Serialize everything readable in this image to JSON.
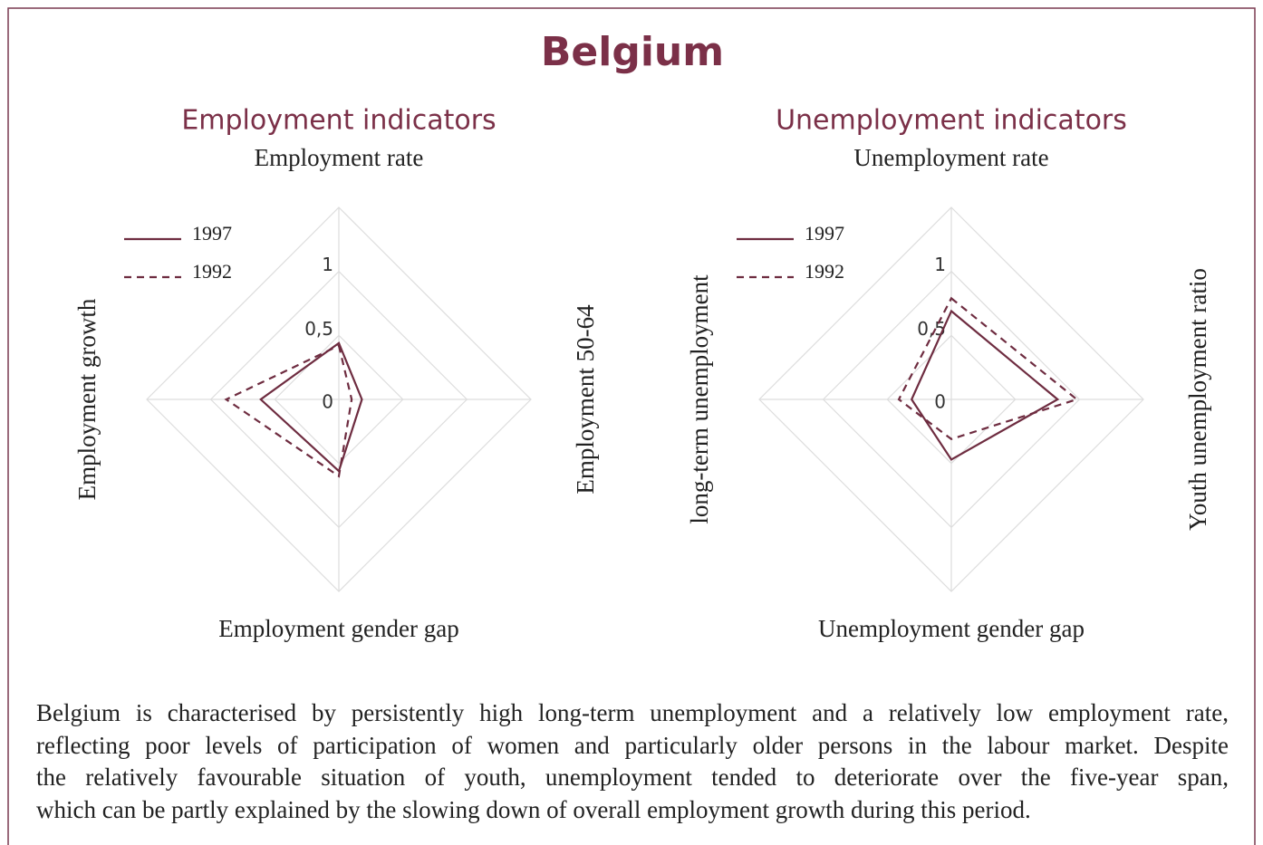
{
  "title": "Belgium",
  "chart_data": [
    {
      "type": "radar",
      "title": "Employment indicators",
      "categories": [
        "Employment rate",
        "Employment 50-64",
        "Employment gender gap",
        "Employment growth"
      ],
      "series": [
        {
          "name": "1997",
          "color": "#6e2c40",
          "dash": "solid",
          "values": [
            0.44,
            0.18,
            0.56,
            0.61
          ]
        },
        {
          "name": "1992",
          "color": "#6e2c40",
          "dash": "dashed",
          "values": [
            0.42,
            0.1,
            0.6,
            0.88
          ]
        }
      ],
      "rlim": [
        0,
        1.5
      ],
      "rticks": [
        0,
        {
          "value": 0.5,
          "label": "0,5"
        },
        1
      ],
      "grid": true
    },
    {
      "type": "radar",
      "title": "Unemployment indicators",
      "categories": [
        "Unemployment rate",
        "Youth unemployment ratio",
        "Unemployment gender gap",
        "long-term unemployment"
      ],
      "series": [
        {
          "name": "1997",
          "color": "#6e2c40",
          "dash": "solid",
          "values": [
            0.69,
            0.83,
            0.47,
            0.31
          ]
        },
        {
          "name": "1992",
          "color": "#6e2c40",
          "dash": "dashed",
          "values": [
            0.79,
            0.98,
            0.31,
            0.41
          ]
        }
      ],
      "rlim": [
        0,
        1.5
      ],
      "rticks": [
        0,
        {
          "value": 0.5,
          "label": "0,5"
        },
        1
      ],
      "grid": true
    }
  ],
  "caption": [
    "Belgium is characterised by persistently high long-term unemployment and a relatively low employment rate,",
    "reflecting poor levels of participation of women and particularly older persons in the labour market. Despite",
    "the relatively favourable situation of youth, unemployment tended to deteriorate over the five-year span,",
    "which can be partly explained by the slowing down of overall employment growth during this period."
  ]
}
